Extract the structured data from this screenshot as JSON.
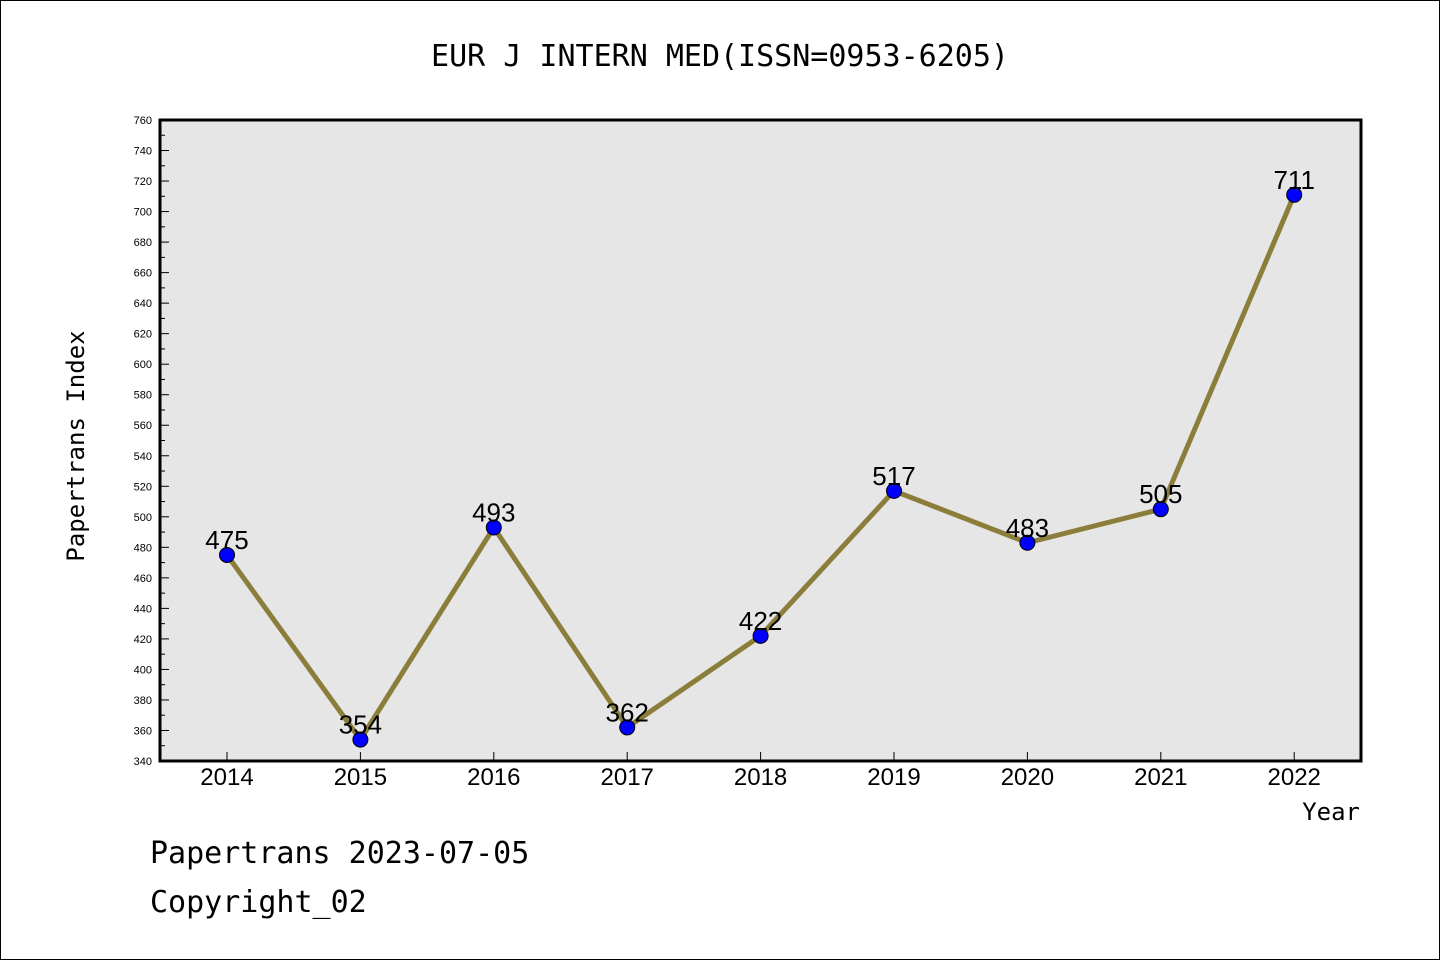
{
  "chart_data": {
    "type": "line",
    "title": "EUR J INTERN MED(ISSN=0953-6205)",
    "xlabel": "Year",
    "ylabel": "Papertrans Index",
    "x": [
      "2014",
      "2015",
      "2016",
      "2017",
      "2018",
      "2019",
      "2020",
      "2021",
      "2022"
    ],
    "series": [
      {
        "values": [
          475,
          354,
          493,
          362,
          422,
          517,
          483,
          505,
          711
        ]
      }
    ],
    "ylim": [
      340,
      760
    ],
    "yticks": [
      340,
      360,
      380,
      400,
      420,
      440,
      460,
      480,
      500,
      520,
      540,
      560,
      580,
      600,
      620,
      640,
      660,
      680,
      700,
      720,
      740,
      760
    ],
    "grid": false,
    "plot_background": "#e6e6e6",
    "line_color": "#8b7d3a",
    "marker_color": "#0000ff"
  },
  "footer": {
    "line1": "Papertrans 2023-07-05",
    "line2": "Copyright_02"
  }
}
